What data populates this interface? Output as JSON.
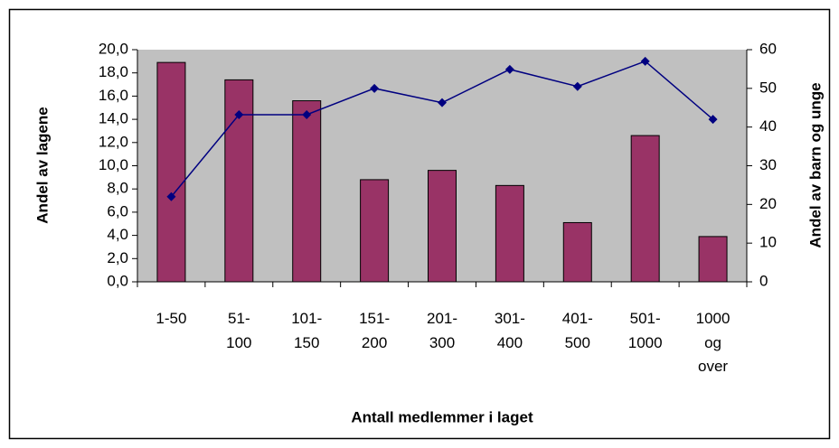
{
  "chart_data": {
    "type": "bar",
    "categories": [
      "1-50",
      "51-100",
      "101-150",
      "151-200",
      "201-300",
      "301-400",
      "401-500",
      "501-1000",
      "1000 og over"
    ],
    "xlabel": "Antall medlemmer i laget",
    "ylabel": "Andel av lagene",
    "y2label": "Andel av barn og unge",
    "series": [
      {
        "type": "bar",
        "color": "#993366",
        "values": [
          18.9,
          17.4,
          15.6,
          8.8,
          9.6,
          8.3,
          5.1,
          12.6,
          3.9
        ]
      },
      {
        "type": "line",
        "axis": "y2",
        "color": "#000080",
        "values": [
          22,
          43.2,
          43.2,
          50,
          46.3,
          54.9,
          50.5,
          57,
          42
        ]
      }
    ],
    "ylim": [
      0,
      20
    ],
    "yticks": [
      {
        "value": 0,
        "label": "0,0"
      },
      {
        "value": 2,
        "label": "2,0"
      },
      {
        "value": 4,
        "label": "4,0"
      },
      {
        "value": 6,
        "label": "6,0"
      },
      {
        "value": 8,
        "label": "8,0"
      },
      {
        "value": 10,
        "label": "10,0"
      },
      {
        "value": 12,
        "label": "12,0"
      },
      {
        "value": 14,
        "label": "14,0"
      },
      {
        "value": 16,
        "label": "16,0"
      },
      {
        "value": 18,
        "label": "18,0"
      },
      {
        "value": 20,
        "label": "20,0"
      }
    ],
    "y2lim": [
      0,
      60
    ],
    "y2ticks": [
      0,
      10,
      20,
      30,
      40,
      50,
      60
    ],
    "plot_background": "#c0c0c0"
  }
}
